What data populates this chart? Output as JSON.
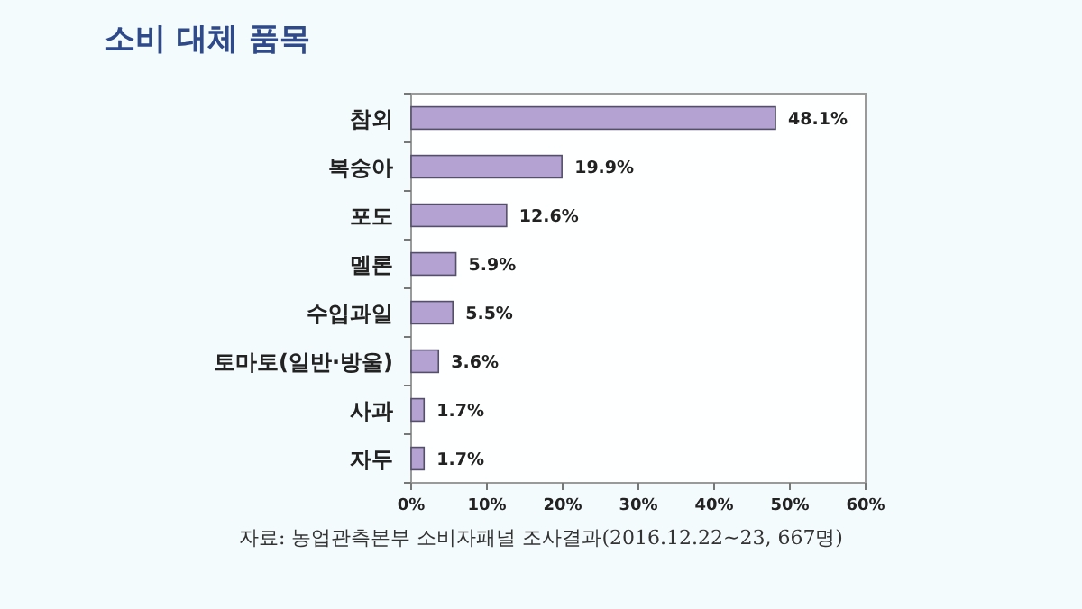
{
  "chart_data": {
    "type": "bar",
    "orientation": "horizontal",
    "title": "소비 대체 품목",
    "categories": [
      "참외",
      "복숭아",
      "포도",
      "멜론",
      "수입과일",
      "토마토(일반·방울)",
      "사과",
      "자두"
    ],
    "values": [
      48.1,
      19.9,
      12.6,
      5.9,
      5.5,
      3.6,
      1.7,
      1.7
    ],
    "value_labels": [
      "48.1%",
      "19.9%",
      "12.6%",
      "5.9%",
      "5.5%",
      "3.6%",
      "1.7%",
      "1.7%"
    ],
    "color": "#b4a2d2",
    "xlim": [
      0,
      60
    ],
    "xticks": [
      {
        "value": 0,
        "label": "0%"
      },
      {
        "value": 10,
        "label": "10%"
      },
      {
        "value": 20,
        "label": "20%"
      },
      {
        "value": 30,
        "label": "30%"
      },
      {
        "value": 40,
        "label": "40%"
      },
      {
        "value": 50,
        "label": "50%"
      },
      {
        "value": 60,
        "label": "60%"
      }
    ],
    "grid": false,
    "annotations": [
      "자료: 농업관측본부 소비자패널 조사결과(2016.12.22~23, 667명)"
    ]
  }
}
